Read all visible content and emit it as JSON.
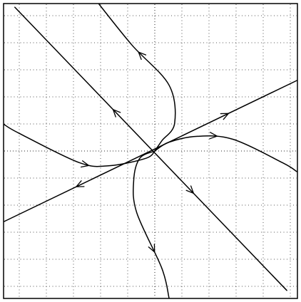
{
  "diagram": {
    "kind": "phase-portrait",
    "grid": true,
    "grid_style": "dotted",
    "stroke_color": "#000000",
    "background_color": "#ffffff",
    "x_range": [
      -1,
      1
    ],
    "y_range": [
      -1,
      1
    ],
    "trajectories": [
      {
        "id": "eigenline-slow",
        "points": [
          [
            -1,
            -0.48
          ],
          [
            1,
            0.48
          ]
        ],
        "arrows": [
          [
            0.52,
            0.25,
            1
          ],
          [
            -0.52,
            -0.25,
            -1
          ]
        ]
      },
      {
        "id": "eigenline-fast",
        "points": [
          [
            -0.93,
            0.98
          ],
          [
            0.93,
            -0.95
          ]
        ],
        "arrows": [
          [
            -0.28,
            0.28,
            -1
          ],
          [
            0.28,
            -0.28,
            1
          ]
        ]
      },
      {
        "id": "curve-upper",
        "points": [
          [
            -0.37,
            1.0
          ],
          [
            -0.15,
            0.72
          ],
          [
            0.1,
            0.45
          ],
          [
            0.14,
            0.19
          ],
          [
            0.05,
            0.07
          ],
          [
            0.0,
            0.0
          ]
        ],
        "arrows": [
          [
            -0.12,
            0.66,
            -1
          ]
        ]
      },
      {
        "id": "curve-right",
        "points": [
          [
            0.0,
            0.0
          ],
          [
            0.1,
            0.06
          ],
          [
            0.3,
            0.1
          ],
          [
            0.55,
            0.08
          ],
          [
            0.9,
            -0.08
          ],
          [
            1,
            -0.14
          ]
        ],
        "arrows": [
          [
            0.44,
            0.11,
            1
          ]
        ]
      },
      {
        "id": "curve-lower",
        "points": [
          [
            0.0,
            0.0
          ],
          [
            -0.1,
            -0.05
          ],
          [
            -0.14,
            -0.2
          ],
          [
            -0.12,
            -0.42
          ],
          [
            0.05,
            -0.8
          ],
          [
            0.1,
            -1.0
          ]
        ],
        "arrows": [
          [
            0.08,
            -0.65,
            1
          ]
        ]
      },
      {
        "id": "curve-left",
        "points": [
          [
            0.0,
            0.0
          ],
          [
            -0.06,
            -0.05
          ],
          [
            -0.3,
            -0.1
          ],
          [
            -0.5,
            -0.08
          ],
          [
            -0.9,
            0.12
          ],
          [
            -1,
            0.18
          ]
        ],
        "arrows": [
          [
            -0.44,
            -0.1,
            -1
          ]
        ]
      }
    ]
  }
}
